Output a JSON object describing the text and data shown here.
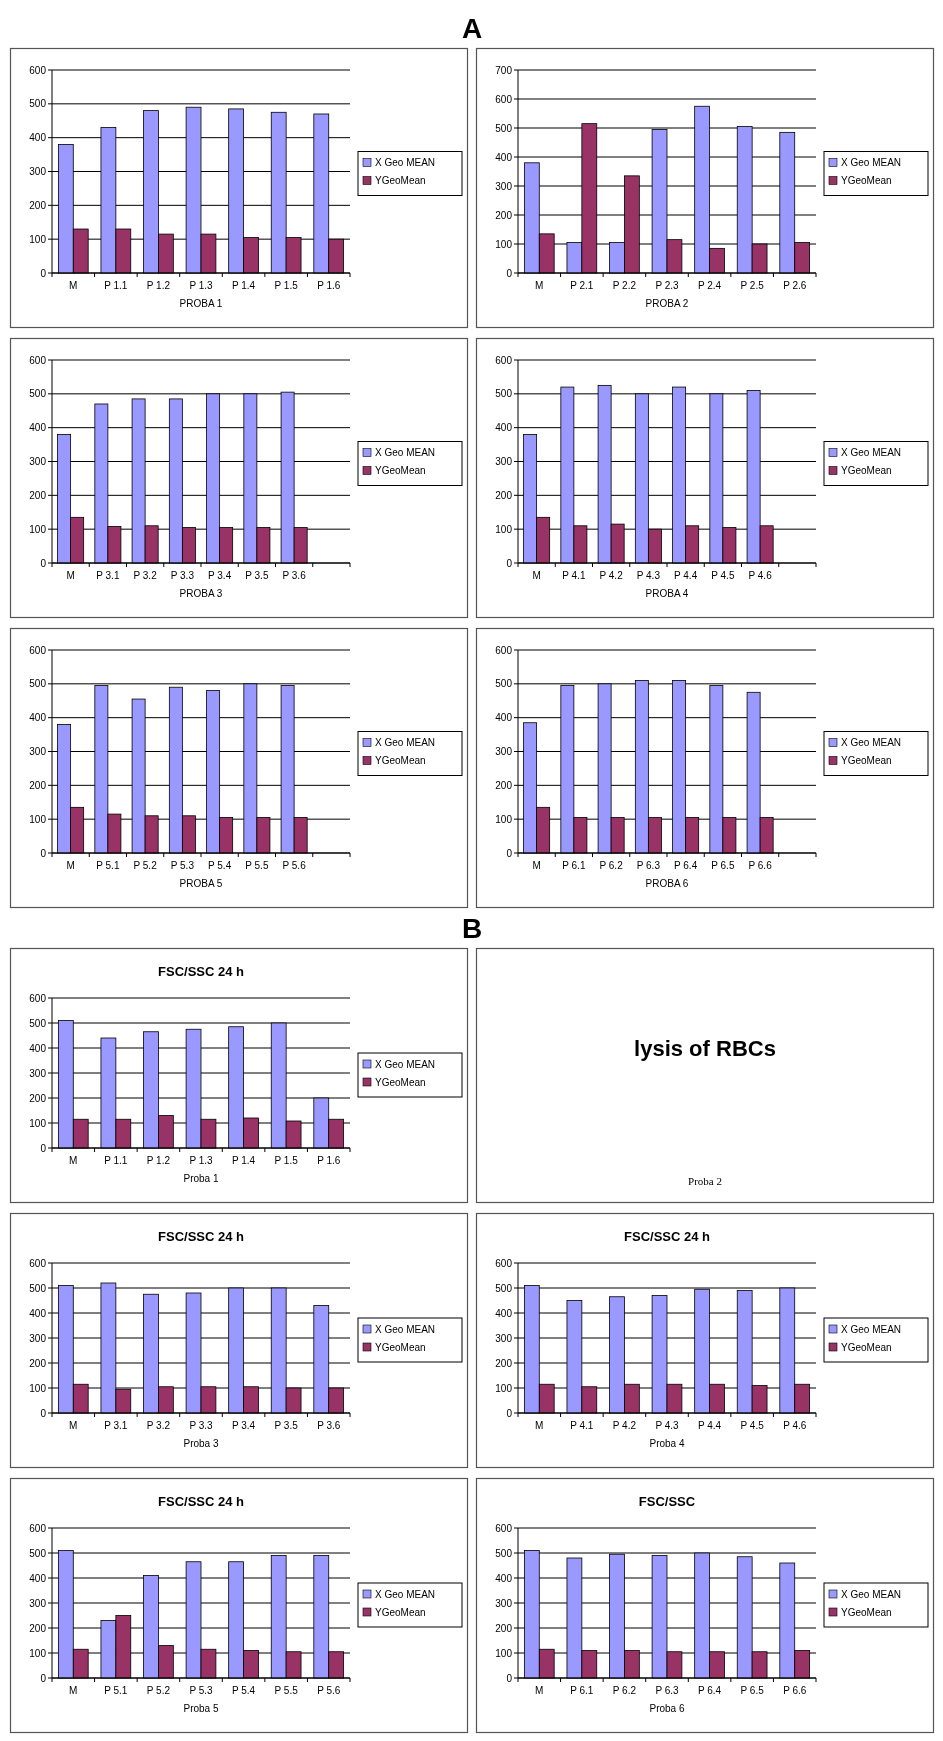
{
  "chart_data": [
    {
      "type": "bar",
      "annotations": [
        "A"
      ],
      "xlabel": "PROBA 1",
      "categories": [
        "M",
        "P 1.1",
        "P 1.2",
        "P 1.3",
        "P 1.4",
        "P 1.5",
        "P 1.6"
      ],
      "ylim": [
        0,
        600
      ],
      "yticks": [
        0,
        100,
        200,
        300,
        400,
        500,
        600
      ],
      "grid": "y",
      "legend": "right",
      "series": [
        {
          "name": "X Geo MEAN",
          "color": "#9999ff",
          "values": [
            380,
            430,
            480,
            490,
            485,
            475,
            470
          ]
        },
        {
          "name": "YGeoMean",
          "color": "#993366",
          "values": [
            130,
            130,
            115,
            115,
            105,
            105,
            100
          ]
        }
      ]
    },
    {
      "type": "bar",
      "xlabel": "PROBA 2",
      "categories": [
        "M",
        "P 2.1",
        "P 2.2",
        "P 2.3",
        "P 2.4",
        "P 2.5",
        "P 2.6"
      ],
      "ylim": [
        0,
        700
      ],
      "yticks": [
        0,
        100,
        200,
        300,
        400,
        500,
        600,
        700
      ],
      "grid": "y",
      "legend": "right",
      "series": [
        {
          "name": "X Geo MEAN",
          "color": "#9999ff",
          "values": [
            380,
            105,
            105,
            495,
            575,
            505,
            485
          ]
        },
        {
          "name": "YGeoMean",
          "color": "#993366",
          "values": [
            135,
            515,
            335,
            115,
            85,
            100,
            105
          ]
        }
      ]
    },
    {
      "type": "bar",
      "xlabel": "PROBA 3",
      "categories": [
        "M",
        "P 3.1",
        "P 3.2",
        "P 3.3",
        "P 3.4",
        "P 3.5",
        "P 3.6",
        null
      ],
      "ylim": [
        0,
        600
      ],
      "yticks": [
        0,
        100,
        200,
        300,
        400,
        500,
        600
      ],
      "grid": "y",
      "legend": "right",
      "series": [
        {
          "name": "X Geo MEAN",
          "color": "#9999ff",
          "values": [
            380,
            470,
            485,
            485,
            500,
            500,
            505,
            null
          ]
        },
        {
          "name": "YGeoMean",
          "color": "#993366",
          "values": [
            135,
            108,
            110,
            105,
            105,
            105,
            105,
            null
          ]
        }
      ]
    },
    {
      "type": "bar",
      "xlabel": "PROBA 4",
      "categories": [
        "M",
        "P 4.1",
        "P 4.2",
        "P 4.3",
        "P 4.4",
        "P 4.5",
        "P 4.6",
        null
      ],
      "ylim": [
        0,
        600
      ],
      "yticks": [
        0,
        100,
        200,
        300,
        400,
        500,
        600
      ],
      "grid": "y",
      "legend": "right",
      "series": [
        {
          "name": "X Geo MEAN",
          "color": "#9999ff",
          "values": [
            380,
            520,
            525,
            500,
            520,
            500,
            510,
            null
          ]
        },
        {
          "name": "YGeoMean",
          "color": "#993366",
          "values": [
            135,
            110,
            115,
            100,
            110,
            105,
            110,
            null
          ]
        }
      ]
    },
    {
      "type": "bar",
      "xlabel": "PROBA 5",
      "categories": [
        "M",
        "P 5.1",
        "P 5.2",
        "P 5.3",
        "P 5.4",
        "P 5.5",
        "P 5.6",
        null
      ],
      "ylim": [
        0,
        600
      ],
      "yticks": [
        0,
        100,
        200,
        300,
        400,
        500,
        600
      ],
      "grid": "y",
      "legend": "right",
      "series": [
        {
          "name": "X Geo MEAN",
          "color": "#9999ff",
          "values": [
            380,
            495,
            455,
            490,
            480,
            500,
            495,
            null
          ]
        },
        {
          "name": "YGeoMean",
          "color": "#993366",
          "values": [
            135,
            115,
            110,
            110,
            105,
            105,
            105,
            null
          ]
        }
      ]
    },
    {
      "type": "bar",
      "xlabel": "PROBA 6",
      "categories": [
        "M",
        "P 6.1",
        "P 6.2",
        "P 6.3",
        "P 6.4",
        "P 6.5",
        "P 6.6",
        null
      ],
      "ylim": [
        0,
        600
      ],
      "yticks": [
        0,
        100,
        200,
        300,
        400,
        500,
        600
      ],
      "grid": "y",
      "legend": "right",
      "series": [
        {
          "name": "X Geo MEAN",
          "color": "#9999ff",
          "values": [
            385,
            495,
            500,
            510,
            510,
            495,
            475,
            null
          ]
        },
        {
          "name": "YGeoMean",
          "color": "#993366",
          "values": [
            135,
            105,
            105,
            105,
            105,
            105,
            105,
            null
          ]
        }
      ]
    },
    {
      "type": "bar",
      "annotations": [
        "B"
      ],
      "title": "FSC/SSC 24 h",
      "xlabel": "Proba 1",
      "categories": [
        "M",
        "P 1.1",
        "P 1.2",
        "P 1.3",
        "P 1.4",
        "P 1.5",
        "P 1.6"
      ],
      "ylim": [
        0,
        600
      ],
      "yticks": [
        0,
        100,
        200,
        300,
        400,
        500,
        600
      ],
      "grid": "y",
      "legend": "right",
      "series": [
        {
          "name": "X Geo MEAN",
          "color": "#9999ff",
          "values": [
            510,
            440,
            465,
            475,
            485,
            500,
            200
          ]
        },
        {
          "name": "YGeoMean",
          "color": "#993366",
          "values": [
            115,
            115,
            130,
            115,
            120,
            108,
            115
          ]
        }
      ]
    },
    {
      "type": "other",
      "title": "lysis of RBCs",
      "xlabel": "Proba 2"
    },
    {
      "type": "bar",
      "title": "FSC/SSC 24 h",
      "xlabel": "Proba 3",
      "categories": [
        "M",
        "P 3.1",
        "P 3.2",
        "P 3.3",
        "P 3.4",
        "P 3.5",
        "P 3.6"
      ],
      "ylim": [
        0,
        600
      ],
      "yticks": [
        0,
        100,
        200,
        300,
        400,
        500,
        600
      ],
      "grid": "y",
      "legend": "right",
      "series": [
        {
          "name": "X Geo MEAN",
          "color": "#9999ff",
          "values": [
            510,
            520,
            475,
            480,
            500,
            500,
            430
          ]
        },
        {
          "name": "YGeoMean",
          "color": "#993366",
          "values": [
            115,
            95,
            105,
            105,
            105,
            100,
            100
          ]
        }
      ]
    },
    {
      "type": "bar",
      "title": "FSC/SSC 24 h",
      "xlabel": "Proba 4",
      "categories": [
        "M",
        "P 4.1",
        "P 4.2",
        "P 4.3",
        "P 4.4",
        "P 4.5",
        "P 4.6"
      ],
      "ylim": [
        0,
        600
      ],
      "yticks": [
        0,
        100,
        200,
        300,
        400,
        500,
        600
      ],
      "grid": "y",
      "legend": "right",
      "series": [
        {
          "name": "X Geo MEAN",
          "color": "#9999ff",
          "values": [
            510,
            450,
            465,
            470,
            495,
            490,
            500
          ]
        },
        {
          "name": "YGeoMean",
          "color": "#993366",
          "values": [
            115,
            105,
            115,
            115,
            115,
            110,
            115
          ]
        }
      ]
    },
    {
      "type": "bar",
      "title": "FSC/SSC 24 h",
      "xlabel": "Proba 5",
      "categories": [
        "M",
        "P 5.1",
        "P 5.2",
        "P 5.3",
        "P 5.4",
        "P 5.5",
        "P 5.6"
      ],
      "ylim": [
        0,
        600
      ],
      "yticks": [
        0,
        100,
        200,
        300,
        400,
        500,
        600
      ],
      "grid": "y",
      "legend": "right",
      "series": [
        {
          "name": "X Geo MEAN",
          "color": "#9999ff",
          "values": [
            510,
            230,
            410,
            465,
            465,
            490,
            490
          ]
        },
        {
          "name": "YGeoMean",
          "color": "#993366",
          "values": [
            115,
            250,
            130,
            115,
            110,
            105,
            105
          ]
        }
      ]
    },
    {
      "type": "bar",
      "title": "FSC/SSC",
      "xlabel": "Proba 6",
      "categories": [
        "M",
        "P 6.1",
        "P 6.2",
        "P 6.3",
        "P 6.4",
        "P 6.5",
        "P 6.6"
      ],
      "ylim": [
        0,
        600
      ],
      "yticks": [
        0,
        100,
        200,
        300,
        400,
        500,
        600
      ],
      "grid": "y",
      "legend": "right",
      "series": [
        {
          "name": "X Geo MEAN",
          "color": "#9999ff",
          "values": [
            510,
            480,
            495,
            490,
            500,
            485,
            460
          ]
        },
        {
          "name": "YGeoMean",
          "color": "#993366",
          "values": [
            115,
            110,
            110,
            105,
            105,
            105,
            110
          ]
        }
      ]
    }
  ]
}
